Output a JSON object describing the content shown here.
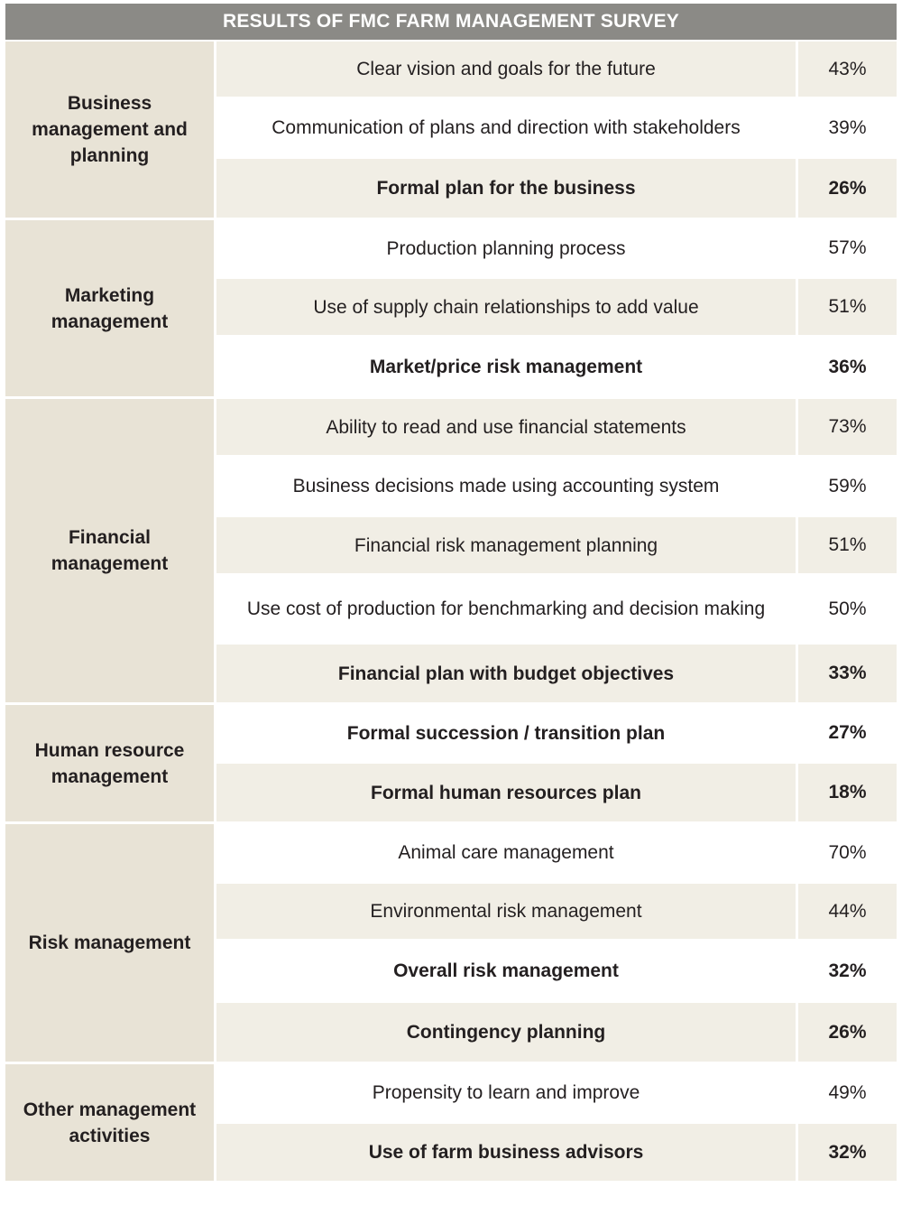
{
  "title": "RESULTS OF FMC FARM MANAGEMENT SURVEY",
  "groups": [
    {
      "category": "Business management and planning",
      "rows": [
        {
          "label": "Clear vision and goals for the future",
          "value": "43%",
          "bold": false
        },
        {
          "label": "Communication of plans and direction with stakeholders",
          "value": "39%",
          "bold": false
        },
        {
          "label": "Formal plan for the business",
          "value": "26%",
          "bold": true
        }
      ]
    },
    {
      "category": "Marketing management",
      "rows": [
        {
          "label": "Production planning process",
          "value": "57%",
          "bold": false
        },
        {
          "label": "Use of supply chain relationships to add value",
          "value": "51%",
          "bold": false
        },
        {
          "label": "Market/price risk management",
          "value": "36%",
          "bold": true
        }
      ]
    },
    {
      "category": "Financial management",
      "rows": [
        {
          "label": "Ability to read and use financial statements",
          "value": "73%",
          "bold": false
        },
        {
          "label": "Business decisions made using accounting system",
          "value": "59%",
          "bold": false
        },
        {
          "label": "Financial risk management planning",
          "value": "51%",
          "bold": false
        },
        {
          "label": "Use cost of production for benchmarking and decision making",
          "value": "50%",
          "bold": false
        },
        {
          "label": "Financial plan with budget objectives",
          "value": "33%",
          "bold": true
        }
      ]
    },
    {
      "category": "Human resource management",
      "rows": [
        {
          "label": "Formal succession / transition plan",
          "value": "27%",
          "bold": true
        },
        {
          "label": "Formal human resources plan",
          "value": "18%",
          "bold": true
        }
      ]
    },
    {
      "category": "Risk management",
      "rows": [
        {
          "label": "Animal care management",
          "value": "70%",
          "bold": false
        },
        {
          "label": "Environmental risk management",
          "value": "44%",
          "bold": false
        },
        {
          "label": "Overall risk management",
          "value": "32%",
          "bold": true
        },
        {
          "label": "Contingency planning",
          "value": "26%",
          "bold": true
        }
      ]
    },
    {
      "category": "Other management activities",
      "rows": [
        {
          "label": "Propensity to learn and improve",
          "value": "49%",
          "bold": false
        },
        {
          "label": "Use of farm business advisors",
          "value": "32%",
          "bold": true
        }
      ]
    }
  ]
}
